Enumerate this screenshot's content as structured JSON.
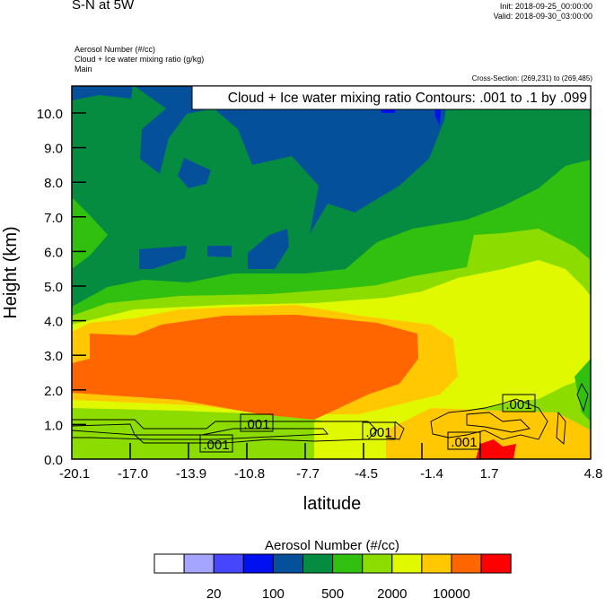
{
  "header": {
    "title": "S-N at 5W",
    "init": "Init: 2018-09-25_00:00:00",
    "valid": "Valid: 2018-09-30_03:00:00",
    "fields": [
      "Aerosol Number   (#/cc)",
      "Cloud + Ice water mixing ratio   (g/kg)",
      "Main"
    ],
    "cross_section": "Cross-Section: (269,231) to (269,485)"
  },
  "chart_data": {
    "type": "heatmap",
    "subtype": "filled contour cross-section with line contours",
    "xlabel": "latitude",
    "ylabel": "Height (km)",
    "x_ticks": [
      "-20.1",
      "-17.0",
      "-13.9",
      "-10.8",
      "-7.7",
      "-4.5",
      "-1.4",
      "1.7",
      "4.8"
    ],
    "y_ticks": [
      "0.0",
      "1.0",
      "2.0",
      "3.0",
      "4.0",
      "5.0",
      "6.0",
      "7.0",
      "8.0",
      "9.0",
      "10.0"
    ],
    "xlim": [
      -20.1,
      4.8
    ],
    "ylim": [
      0,
      10.8
    ],
    "contour_title": "Cloud + Ice water mixing ratio Contours: .001 to .1 by .099",
    "contour_labels": [
      ".001",
      ".001",
      ".001",
      ".001",
      ".001"
    ],
    "colorbar": {
      "title": "Aerosol Number  (#/cc)",
      "colors": [
        "#ffffff",
        "#a5a5ff",
        "#4646ff",
        "#0010ee",
        "#05509a",
        "#058c40",
        "#32c010",
        "#8cdc00",
        "#e0f800",
        "#ffc800",
        "#ff6600",
        "#ff0000"
      ],
      "labels": [
        "20",
        "100",
        "500",
        "2000",
        "10000"
      ]
    },
    "description_regions": {
      "max_region": "orange (~5000-10000 #/cc) between 2.0 and 4.0 km from -20.1 to -2",
      "min_region": "dark blue (~100-500 #/cc) above 6 km between -17 and -1"
    }
  }
}
